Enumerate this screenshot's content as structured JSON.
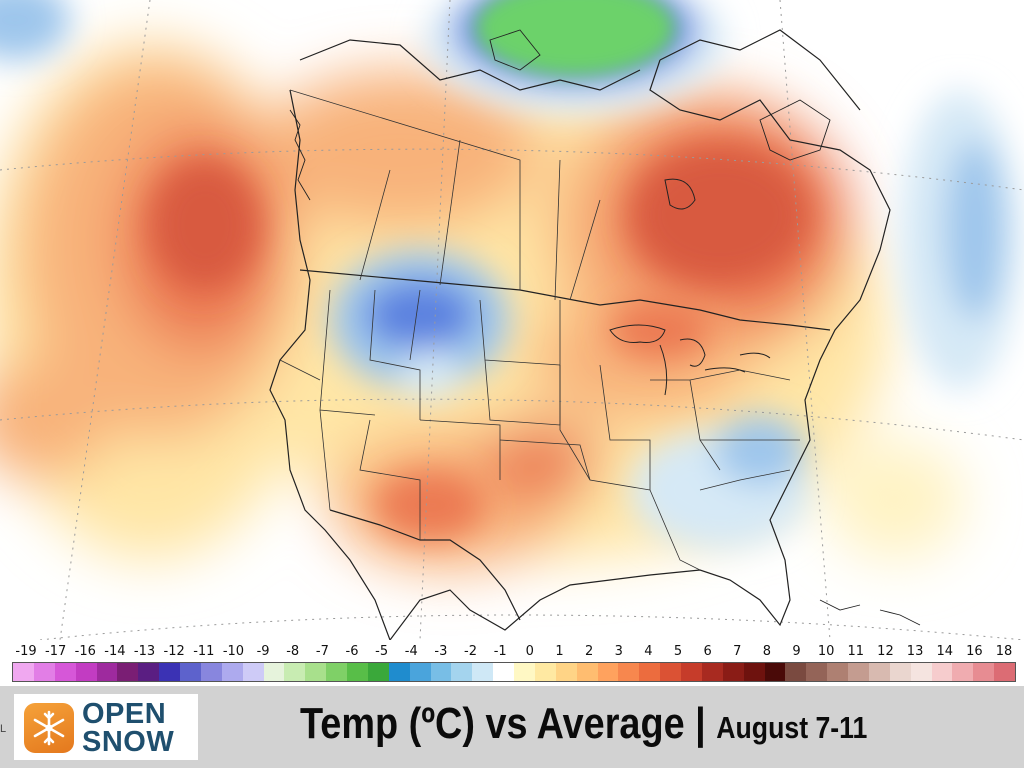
{
  "footer": {
    "title_main": "Temp (ºC) vs Average |",
    "title_dates": "August 7-11",
    "brand_line1": "OPEN",
    "brand_line2": "SNOW",
    "edge_mark": "L"
  },
  "legend": {
    "labels": [
      "-19",
      "-17",
      "-16",
      "-14",
      "-13",
      "-12",
      "-11",
      "-10",
      "-9",
      "-8",
      "-7",
      "-6",
      "-5",
      "-4",
      "-3",
      "-2",
      "-1",
      "0",
      "1",
      "2",
      "3",
      "4",
      "5",
      "6",
      "7",
      "8",
      "9",
      "10",
      "11",
      "12",
      "13",
      "14",
      "16",
      "18"
    ],
    "colors": [
      "#f0a8f0",
      "#e27ee6",
      "#d657d8",
      "#c23cc2",
      "#9e2a9e",
      "#7a1e74",
      "#5a1e82",
      "#3b32b4",
      "#5d62cc",
      "#8886de",
      "#adaaee",
      "#cecbf7",
      "#e6f3dc",
      "#c8ecb2",
      "#a8e08c",
      "#7fd067",
      "#58be48",
      "#3aa83a",
      "#1f8cce",
      "#4aa4dc",
      "#78bee6",
      "#a4d4ee",
      "#cfe8f6",
      "#ffffff",
      "#fff8c4",
      "#ffe9a2",
      "#ffd486",
      "#ffbd70",
      "#ffa25e",
      "#f7874e",
      "#ec6c3e",
      "#db5234",
      "#c63c2a",
      "#a82a20",
      "#8a1c16",
      "#6e120e",
      "#4a0a08",
      "#7a4a40",
      "#946458",
      "#ae8072",
      "#c49c90",
      "#d8bab0",
      "#ead6cf",
      "#f5e4e0",
      "#f6cccd",
      "#f0acb0",
      "#e78c92",
      "#dc6c74"
    ]
  },
  "map": {
    "colors": {
      "ocean": "#ffffff",
      "warm_light": "#ffe6a6",
      "warm_mid": "#f8b27a",
      "warm_strong": "#ec7a52",
      "warm_peak": "#d85a40",
      "cool_light": "#d6e9f6",
      "cool_mid": "#9ec6ec",
      "cool_strong": "#5b82e0",
      "cold_peak": "#3f5fd6",
      "green": "#6cd26a",
      "border": "#222222"
    }
  }
}
